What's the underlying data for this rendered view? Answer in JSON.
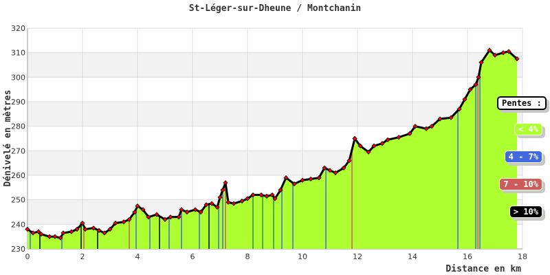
{
  "chart_data": {
    "type": "area",
    "title": "St-Léger-sur-Dheune / Montchanin",
    "xlabel": "Distance en km",
    "ylabel": "Dénivelé en mètres",
    "xlim": [
      0,
      18
    ],
    "ylim": [
      230,
      320
    ],
    "xticks": [
      0,
      2,
      4,
      6,
      8,
      10,
      12,
      14,
      16,
      18
    ],
    "yticks": [
      230,
      240,
      250,
      260,
      270,
      280,
      290,
      300,
      310,
      320
    ],
    "grid": true,
    "fill_color": "#adff2f",
    "marker_color": "#ff0000",
    "line_color": "#000000",
    "x": [
      0,
      0.2,
      0.4,
      0.5,
      0.8,
      1.0,
      1.2,
      1.3,
      1.6,
      1.8,
      2.0,
      2.1,
      2.4,
      2.6,
      2.8,
      3.0,
      3.2,
      3.5,
      3.7,
      3.9,
      4.0,
      4.2,
      4.4,
      4.7,
      5.0,
      5.2,
      5.5,
      5.6,
      5.8,
      6.1,
      6.3,
      6.5,
      6.7,
      6.9,
      7.0,
      7.1,
      7.2,
      7.3,
      7.5,
      7.8,
      8.0,
      8.2,
      8.5,
      8.7,
      8.9,
      9.0,
      9.2,
      9.4,
      9.7,
      10.0,
      10.3,
      10.6,
      10.8,
      11.0,
      11.2,
      11.5,
      11.7,
      11.9,
      12.1,
      12.4,
      12.6,
      12.9,
      13.1,
      13.5,
      13.9,
      14.1,
      14.5,
      14.7,
      15.0,
      15.4,
      15.7,
      15.9,
      16.1,
      16.3,
      16.4,
      16.5,
      16.8,
      17.0,
      17.3,
      17.5,
      17.8
    ],
    "y": [
      238,
      236.5,
      237,
      236,
      235,
      235,
      234.5,
      236.5,
      237,
      238,
      240.5,
      238,
      238.5,
      237.5,
      236.5,
      238,
      240.5,
      241,
      242,
      245,
      247.5,
      246,
      243,
      244,
      242,
      243,
      243,
      246,
      245,
      246,
      245,
      248,
      248.5,
      247,
      251,
      254,
      257,
      249,
      248.5,
      249.5,
      250.5,
      252,
      252,
      251.5,
      252,
      250.5,
      254,
      259,
      256.5,
      258,
      258.5,
      259,
      263,
      262,
      261,
      263,
      266,
      275,
      272,
      269.5,
      272,
      273,
      274.5,
      275.5,
      277,
      280,
      279,
      280,
      283,
      283.5,
      287,
      291,
      295,
      297,
      300,
      306,
      311,
      309,
      310,
      310.5,
      307.5
    ],
    "slope_markers": [
      {
        "x": 0.1,
        "color": "#4169e1"
      },
      {
        "x": 0.45,
        "color": "#000000"
      },
      {
        "x": 1.25,
        "color": "#4169e1"
      },
      {
        "x": 1.95,
        "color": "#000000"
      },
      {
        "x": 2.05,
        "color": "#cd5c5c"
      },
      {
        "x": 2.55,
        "color": "#000000"
      },
      {
        "x": 3.7,
        "color": "#cd5c5c"
      },
      {
        "x": 3.95,
        "color": "#4169e1"
      },
      {
        "x": 4.45,
        "color": "#4169e1"
      },
      {
        "x": 4.8,
        "color": "#000000"
      },
      {
        "x": 5.15,
        "color": "#4169e1"
      },
      {
        "x": 5.6,
        "color": "#4169e1"
      },
      {
        "x": 6.25,
        "color": "#4169e1"
      },
      {
        "x": 6.6,
        "color": "#000000"
      },
      {
        "x": 6.95,
        "color": "#4169e1"
      },
      {
        "x": 7.1,
        "color": "#4169e1"
      },
      {
        "x": 7.2,
        "color": "#cd5c5c"
      },
      {
        "x": 8.2,
        "color": "#2e8b57"
      },
      {
        "x": 8.55,
        "color": "#2e8b57"
      },
      {
        "x": 8.95,
        "color": "#2e8b57"
      },
      {
        "x": 9.25,
        "color": "#4169e1"
      },
      {
        "x": 9.65,
        "color": "#4169e1"
      },
      {
        "x": 10.85,
        "color": "#4169e1"
      },
      {
        "x": 11.8,
        "color": "#cd5c5c"
      },
      {
        "x": 15.65,
        "color": "#4169e1"
      },
      {
        "x": 16.3,
        "color": "#4169e1"
      },
      {
        "x": 16.38,
        "color": "#cd5c5c"
      },
      {
        "x": 16.45,
        "color": "#4169e1"
      }
    ],
    "legend": {
      "placement": "right",
      "title": "Pentes :",
      "entries": [
        {
          "label": "< 4%",
          "color": "#adff2f",
          "text_color": "#ffffff"
        },
        {
          "label": "4 - 7%",
          "color": "#4169e1",
          "text_color": "#ffffff"
        },
        {
          "label": "7 - 10%",
          "color": "#cd5c5c",
          "text_color": "#ffffff"
        },
        {
          "label": "> 10%",
          "color": "#000000",
          "text_color": "#ffffff"
        }
      ]
    }
  }
}
